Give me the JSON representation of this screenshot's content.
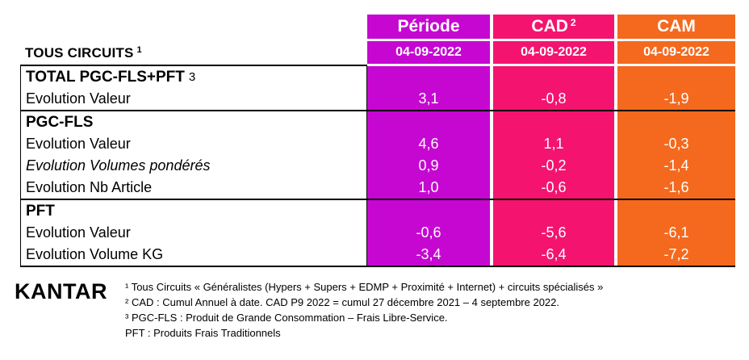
{
  "header": {
    "row_header": "TOUS CIRCUITS",
    "row_header_sup": "1",
    "columns": [
      {
        "label": "Période",
        "sup": "",
        "date": "04-09-2022",
        "color": "#C607D2"
      },
      {
        "label": "CAD",
        "sup": "2",
        "date": "04-09-2022",
        "color": "#F4146F"
      },
      {
        "label": "CAM",
        "sup": "",
        "date": "04-09-2022",
        "color": "#F4691E"
      }
    ]
  },
  "groups": [
    {
      "rows": [
        {
          "label": "TOTAL PGC-FLS+PFT",
          "marker": "3",
          "bold": true,
          "italic": false,
          "values": [
            "",
            "",
            ""
          ]
        },
        {
          "label": "Evolution Valeur",
          "marker": "",
          "bold": false,
          "italic": false,
          "values": [
            "3,1",
            "-0,8",
            "-1,9"
          ]
        }
      ]
    },
    {
      "rows": [
        {
          "label": "PGC-FLS",
          "marker": "",
          "bold": true,
          "italic": false,
          "values": [
            "",
            "",
            ""
          ]
        },
        {
          "label": "Evolution Valeur",
          "marker": "",
          "bold": false,
          "italic": false,
          "values": [
            "4,6",
            "1,1",
            "-0,3"
          ]
        },
        {
          "label": "Evolution Volumes pondérés",
          "marker": "",
          "bold": false,
          "italic": true,
          "values": [
            "0,9",
            "-0,2",
            "-1,4"
          ]
        },
        {
          "label": "Evolution Nb Article",
          "marker": "",
          "bold": false,
          "italic": false,
          "values": [
            "1,0",
            "-0,6",
            "-1,6"
          ]
        }
      ]
    },
    {
      "rows": [
        {
          "label": "PFT",
          "marker": "",
          "bold": true,
          "italic": false,
          "values": [
            "",
            "",
            ""
          ]
        },
        {
          "label": "Evolution Valeur",
          "marker": "",
          "bold": false,
          "italic": false,
          "values": [
            "-0,6",
            "-5,6",
            "-6,1"
          ]
        },
        {
          "label": "Evolution Volume KG",
          "marker": "",
          "bold": false,
          "italic": false,
          "values": [
            "-3,4",
            "-6,4",
            "-7,2"
          ]
        }
      ]
    }
  ],
  "footer": {
    "logo": "KANTAR",
    "notes": [
      {
        "sup": "¹",
        "text": "Tous Circuits « Généralistes (Hypers + Supers + EDMP + Proximité + Internet) + circuits spécialisés »"
      },
      {
        "sup": "²",
        "text": "CAD : Cumul Annuel à date. CAD P9 2022 = cumul 27 décembre 2021 – 4 septembre 2022."
      },
      {
        "sup": "³",
        "text": "PGC-FLS : Produit de Grande Consommation – Frais Libre-Service."
      },
      {
        "sup": "",
        "text": "PFT : Produits Frais Traditionnels"
      }
    ]
  }
}
